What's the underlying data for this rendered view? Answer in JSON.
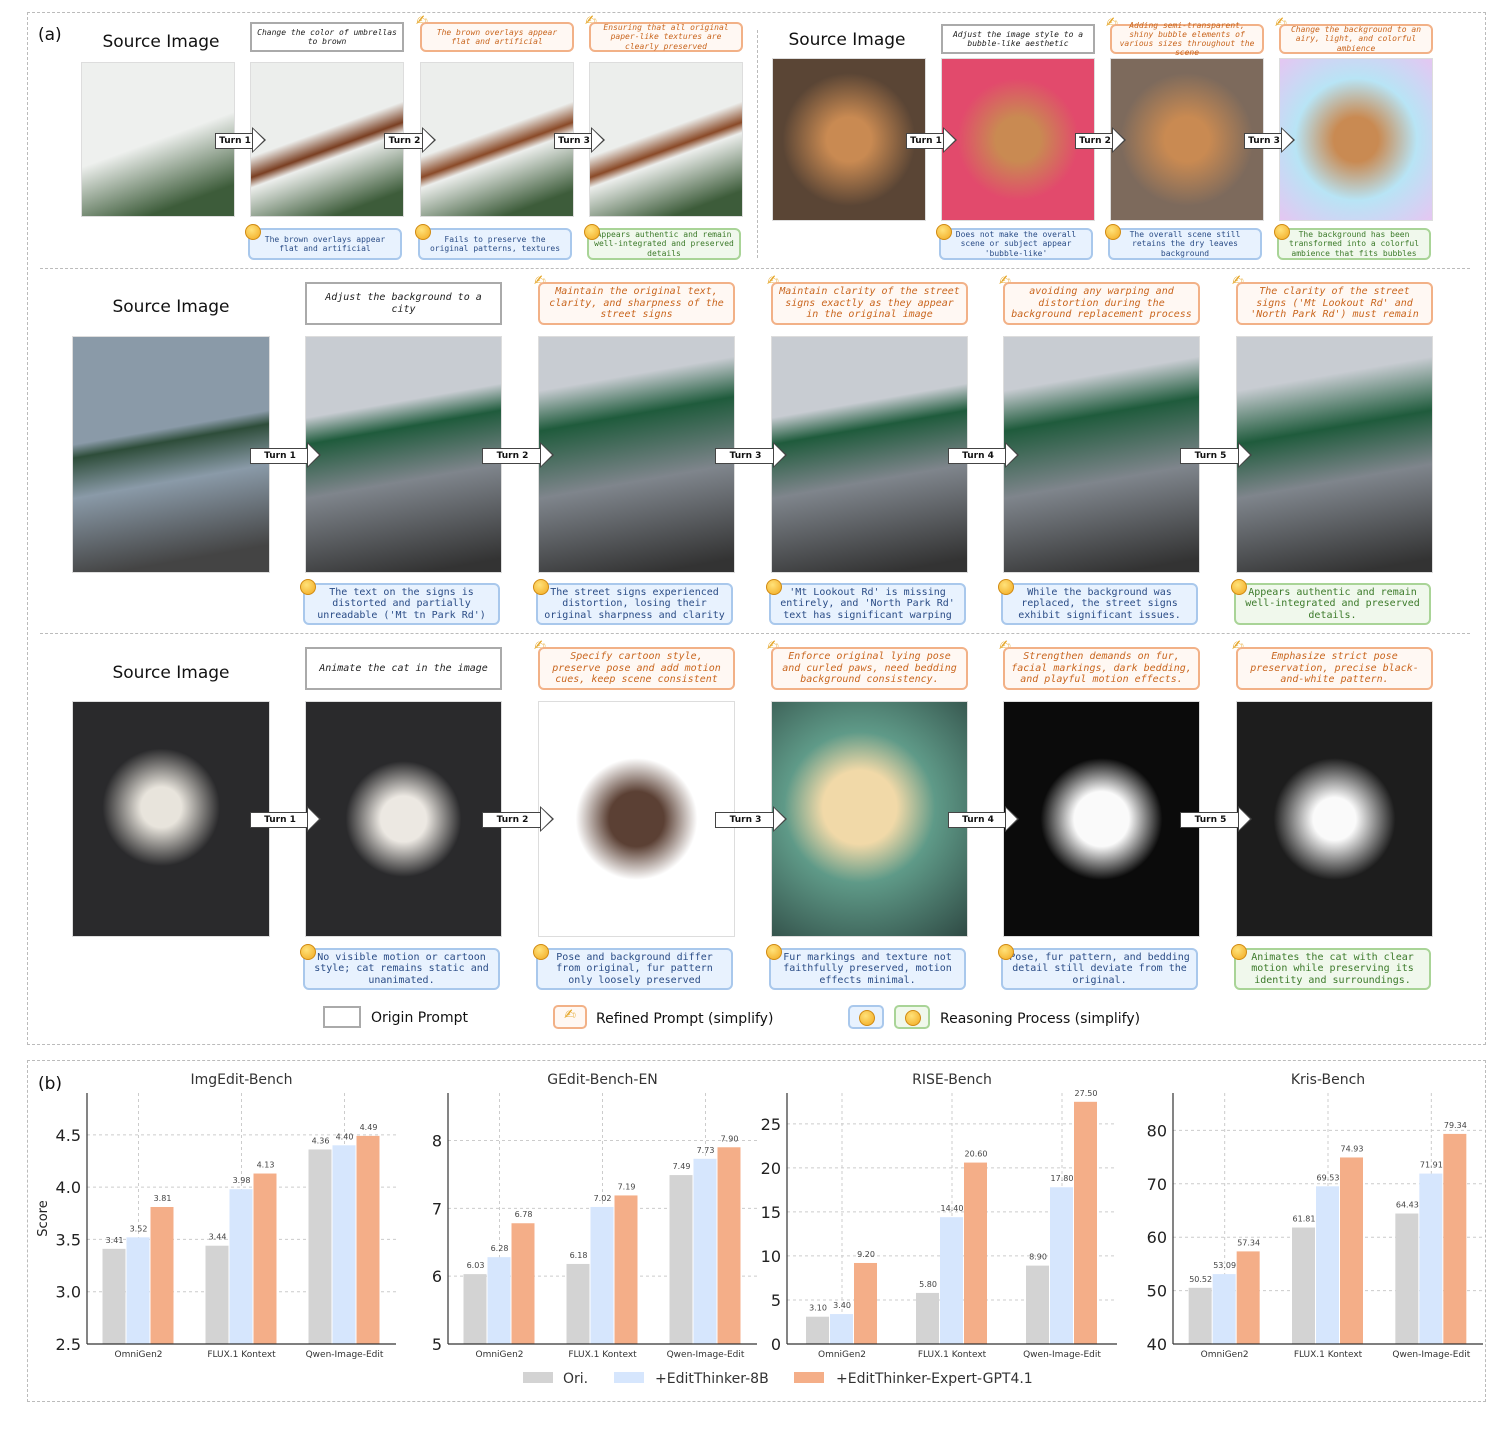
{
  "panel_a": {
    "label": "(a)",
    "source_label": "Source Image",
    "rows": [
      {
        "id": "umbrella",
        "origin_prompt": "Change the color of umbrellas to brown",
        "turns": [
          "Turn 1",
          "Turn 2",
          "Turn 3"
        ],
        "refined_prompts": [
          "The brown overlays appear flat and artificial",
          "Ensuring that all original paper-like textures are clearly preserved"
        ],
        "reasoning": [
          "The brown overlays appear flat and artificial",
          "Fails to preserve the original patterns, textures",
          "Appears authentic and remain well-integrated and preserved details"
        ]
      },
      {
        "id": "dog",
        "origin_prompt": "Adjust the image style to a bubble-like aesthetic",
        "turns": [
          "Turn 1",
          "Turn 2",
          "Turn 3"
        ],
        "refined_prompts": [
          "Adding semi-transparent, shiny bubble elements of various sizes throughout the scene",
          "Change the background to an airy, light, and colorful ambience"
        ],
        "reasoning": [
          "Does not make the overall scene or subject appear 'bubble-like'",
          "The overall scene still retains the dry leaves background",
          "The background has been transformed into a colorful ambience that fits bubbles"
        ]
      },
      {
        "id": "street",
        "origin_prompt": "Adjust the background to a city",
        "turns": [
          "Turn 1",
          "Turn 2",
          "Turn 3",
          "Turn 4",
          "Turn 5"
        ],
        "refined_prompts": [
          "Maintain the original text, clarity, and sharpness of the street signs",
          "Maintain clarity of the street signs exactly as they appear in the original image",
          "avoiding any warping and distortion during the background replacement process",
          "The clarity of the street signs ('Mt Lookout Rd' and 'North Park Rd') must remain"
        ],
        "reasoning": [
          "The text on the signs is distorted and partially unreadable ('Mt tn Park Rd')",
          "The street signs experienced distortion, losing their original sharpness and clarity",
          "'Mt Lookout Rd' is missing entirely, and 'North Park Rd' text has significant warping",
          "While the background was replaced, the street signs exhibit significant issues.",
          "Appears authentic and remain well-integrated and preserved details."
        ]
      },
      {
        "id": "cat",
        "origin_prompt": "Animate the cat in the image",
        "turns": [
          "Turn 1",
          "Turn 2",
          "Turn 3",
          "Turn 4",
          "Turn 5"
        ],
        "refined_prompts": [
          "Specify cartoon style, preserve pose and add motion cues, keep scene consistent",
          "Enforce original lying pose and curled paws, need bedding background consistency.",
          "Strengthen demands on fur, facial markings, dark bedding, and playful motion effects.",
          "Emphasize strict pose preservation, precise black-and-white pattern."
        ],
        "reasoning": [
          "No visible motion or cartoon style; cat remains static and unanimated.",
          "Pose and background differ from original, fur pattern only loosely preserved",
          "Fur markings and texture not faithfully preserved, motion effects minimal.",
          "Pose, fur pattern, and bedding detail still deviate from the original.",
          "Animates the cat with clear motion while preserving its identity and surroundings."
        ]
      }
    ],
    "legend": {
      "origin": "Origin Prompt",
      "refined": "Refined Prompt (simplify)",
      "reasoning": "Reasoning Process (simplify)"
    },
    "icons": {
      "refined": "writing-hand-icon",
      "reasoning_fail": "monocle-face-icon",
      "reasoning_pass": "party-face-icon"
    }
  },
  "panel_b": {
    "label": "(b)",
    "legend": [
      "Ori.",
      "+EditThinker-8B",
      "+EditThinker-Expert-GPT4.1"
    ],
    "colors": [
      "#d3d3d3",
      "#d6e6fd",
      "#f4ae88"
    ]
  },
  "chart_data": [
    {
      "type": "bar",
      "title": "ImgEdit-Bench",
      "ylabel": "Score",
      "categories": [
        "OmniGen2",
        "FLUX.1 Kontext",
        "Qwen-Image-Edit"
      ],
      "ylim": [
        2.5,
        4.9
      ],
      "yticks": [
        "2.5",
        "3.0",
        "3.5",
        "4.0",
        "4.5"
      ],
      "grid": true,
      "series": [
        {
          "name": "Ori.",
          "values": [
            3.41,
            3.44,
            4.36
          ]
        },
        {
          "name": "+EditThinker-8B",
          "values": [
            3.52,
            3.98,
            4.4
          ]
        },
        {
          "name": "+EditThinker-Expert-GPT4.1",
          "values": [
            3.81,
            4.13,
            4.49
          ]
        }
      ],
      "labels": [
        [
          "3.41",
          "3.44",
          "4.36"
        ],
        [
          "3.52",
          "3.98",
          "4.40"
        ],
        [
          "3.81",
          "4.13",
          "4.49"
        ]
      ]
    },
    {
      "type": "bar",
      "title": "GEdit-Bench-EN",
      "ylabel": "",
      "categories": [
        "OmniGen2",
        "FLUX.1 Kontext",
        "Qwen-Image-Edit"
      ],
      "ylim": [
        5,
        8.7
      ],
      "yticks": [
        "5",
        "6",
        "7",
        "8"
      ],
      "grid": true,
      "series": [
        {
          "name": "Ori.",
          "values": [
            6.03,
            6.18,
            7.49
          ]
        },
        {
          "name": "+EditThinker-8B",
          "values": [
            6.28,
            7.02,
            7.73
          ]
        },
        {
          "name": "+EditThinker-Expert-GPT4.1",
          "values": [
            6.78,
            7.19,
            7.9
          ]
        }
      ],
      "labels": [
        [
          "6.03",
          "6.18",
          "7.49"
        ],
        [
          "6.28",
          "7.02",
          "7.73"
        ],
        [
          "6.78",
          "7.19",
          "7.90"
        ]
      ]
    },
    {
      "type": "bar",
      "title": "RISE-Bench",
      "ylabel": "",
      "categories": [
        "OmniGen2",
        "FLUX.1 Kontext",
        "Qwen-Image-Edit"
      ],
      "ylim": [
        0,
        28.5
      ],
      "yticks": [
        "0",
        "5",
        "10",
        "15",
        "20",
        "25"
      ],
      "grid": true,
      "series": [
        {
          "name": "Ori.",
          "values": [
            3.1,
            5.8,
            8.9
          ]
        },
        {
          "name": "+EditThinker-8B",
          "values": [
            3.4,
            14.4,
            17.8
          ]
        },
        {
          "name": "+EditThinker-Expert-GPT4.1",
          "values": [
            9.2,
            20.6,
            27.5
          ]
        }
      ],
      "labels": [
        [
          "3.10",
          "5.80",
          "8.90"
        ],
        [
          "3.40",
          "14.40",
          "17.80"
        ],
        [
          "9.20",
          "20.60",
          "27.50"
        ]
      ]
    },
    {
      "type": "bar",
      "title": "Kris-Bench",
      "ylabel": "",
      "categories": [
        "OmniGen2",
        "FLUX.1 Kontext",
        "Qwen-Image-Edit"
      ],
      "ylim": [
        40,
        87
      ],
      "yticks": [
        "40",
        "50",
        "60",
        "70",
        "80"
      ],
      "grid": true,
      "series": [
        {
          "name": "Ori.",
          "values": [
            50.52,
            61.81,
            64.43
          ]
        },
        {
          "name": "+EditThinker-8B",
          "values": [
            53.09,
            69.53,
            71.91
          ]
        },
        {
          "name": "+EditThinker-Expert-GPT4.1",
          "values": [
            57.34,
            74.93,
            79.34
          ]
        }
      ],
      "labels": [
        [
          "50.52",
          "61.81",
          "64.43"
        ],
        [
          "53.09",
          "69.53",
          "71.91"
        ],
        [
          "57.34",
          "74.93",
          "79.34"
        ]
      ]
    }
  ]
}
